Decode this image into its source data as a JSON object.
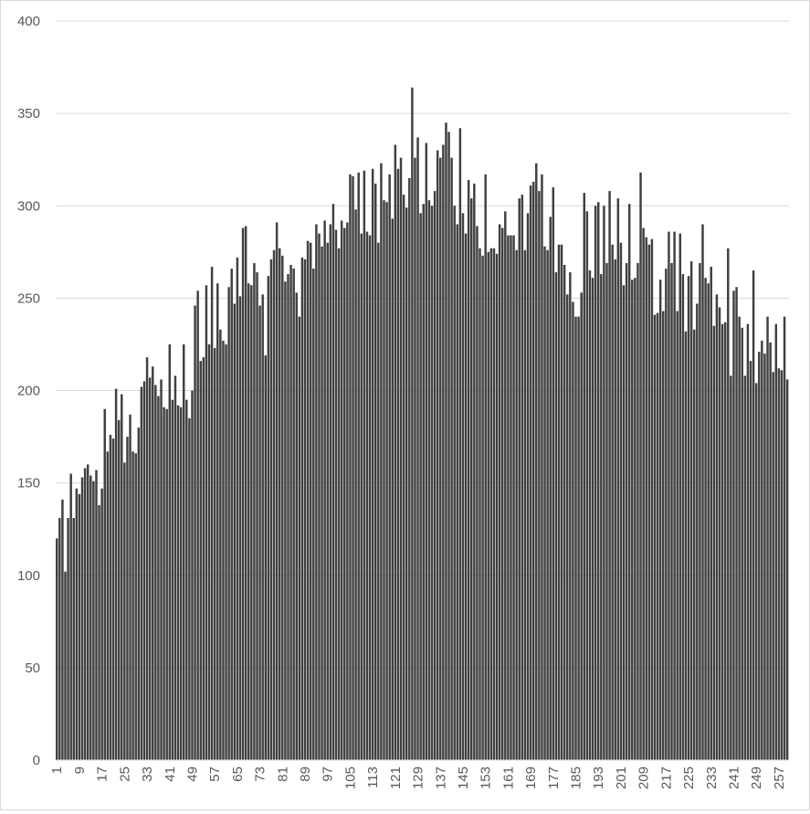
{
  "chart_data": {
    "type": "bar",
    "title": "",
    "xlabel": "",
    "ylabel": "",
    "ylim": [
      0,
      400
    ],
    "yticks": [
      0,
      50,
      100,
      150,
      200,
      250,
      300,
      350,
      400
    ],
    "grid": true,
    "legend": "none",
    "bar_color": "#404040",
    "grid_color": "#d9d9d9",
    "categories_start": 1,
    "category_label_step": 8,
    "values": [
      120,
      131,
      141,
      102,
      131,
      155,
      131,
      147,
      144,
      153,
      158,
      160,
      154,
      151,
      157,
      138,
      147,
      190,
      167,
      176,
      174,
      201,
      184,
      198,
      161,
      175,
      187,
      167,
      166,
      180,
      202,
      205,
      218,
      207,
      213,
      203,
      197,
      206,
      191,
      190,
      225,
      195,
      208,
      192,
      191,
      225,
      195,
      185,
      200,
      246,
      254,
      216,
      218,
      257,
      225,
      267,
      223,
      258,
      233,
      227,
      225,
      256,
      266,
      247,
      272,
      251,
      288,
      289,
      258,
      257,
      269,
      264,
      246,
      252,
      219,
      262,
      271,
      276,
      291,
      277,
      273,
      259,
      263,
      268,
      266,
      253,
      240,
      272,
      271,
      281,
      280,
      266,
      290,
      285,
      278,
      292,
      280,
      290,
      301,
      287,
      277,
      292,
      288,
      291,
      317,
      316,
      298,
      318,
      285,
      319,
      286,
      284,
      320,
      312,
      280,
      323,
      303,
      302,
      317,
      293,
      333,
      320,
      326,
      306,
      299,
      315,
      364,
      326,
      337,
      296,
      301,
      334,
      303,
      300,
      308,
      330,
      326,
      333,
      345,
      340,
      326,
      300,
      290,
      342,
      296,
      285,
      314,
      304,
      312,
      289,
      277,
      273,
      317,
      275,
      277,
      277,
      274,
      290,
      288,
      297,
      284,
      284,
      284,
      276,
      304,
      306,
      276,
      296,
      311,
      313,
      323,
      308,
      317,
      278,
      276,
      294,
      310,
      264,
      279,
      279,
      268,
      252,
      264,
      248,
      240,
      240,
      253,
      307,
      297,
      265,
      261,
      300,
      302,
      263,
      300,
      269,
      308,
      279,
      271,
      304,
      280,
      257,
      269,
      301,
      260,
      261,
      269,
      318,
      288,
      283,
      279,
      282,
      241,
      242,
      260,
      243,
      266,
      286,
      269,
      286,
      243,
      285,
      263,
      232,
      262,
      270,
      233,
      247,
      269,
      290,
      261,
      258,
      267,
      235,
      252,
      245,
      236,
      237,
      277,
      208,
      254,
      256,
      240,
      234,
      208,
      236,
      216,
      265,
      204,
      221,
      227,
      220,
      240,
      226,
      210,
      236,
      212,
      211,
      240,
      206
    ]
  }
}
